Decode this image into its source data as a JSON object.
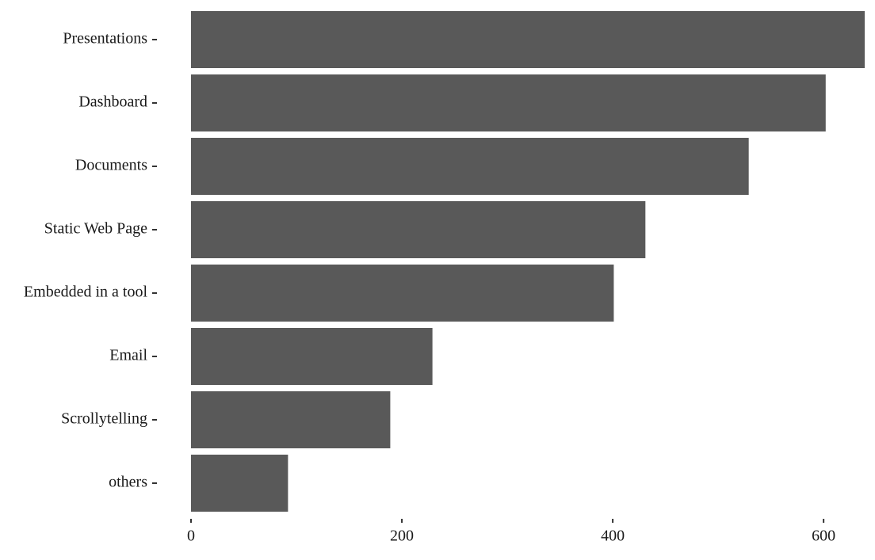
{
  "chart_data": {
    "type": "bar",
    "orientation": "horizontal",
    "categories": [
      "Presentations",
      "Dashboard",
      "Documents",
      "Static Web Page",
      "Embedded in a tool",
      "Email",
      "Scrollytelling",
      "others"
    ],
    "values": [
      639,
      602,
      529,
      431,
      401,
      229,
      189,
      92
    ],
    "color": "#595959",
    "xlim": [
      0,
      639
    ],
    "xticks": [
      0,
      200,
      400,
      600
    ],
    "grid": false
  }
}
